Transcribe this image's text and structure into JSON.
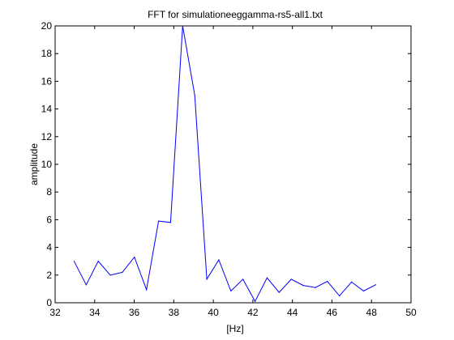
{
  "chart_data": {
    "type": "line",
    "title": "FFT for simulationeeggamma-rs5-all1.txt",
    "xlabel": "[Hz]",
    "ylabel": "amplitude",
    "xlim": [
      32,
      50
    ],
    "ylim": [
      0,
      20
    ],
    "xticks": [
      32,
      34,
      36,
      38,
      40,
      42,
      44,
      46,
      48,
      50
    ],
    "yticks": [
      0,
      2,
      4,
      6,
      8,
      10,
      12,
      14,
      16,
      18,
      20
    ],
    "grid": false,
    "line_color": "#0000ff",
    "series": [
      {
        "x": [
          32.96,
          33.57,
          34.18,
          34.79,
          35.4,
          36.01,
          36.62,
          37.23,
          37.84,
          38.45,
          39.06,
          39.67,
          40.28,
          40.89,
          41.5,
          42.11,
          42.72,
          43.33,
          43.94,
          44.55,
          45.16,
          45.77,
          46.38,
          46.99,
          47.6,
          48.21
        ],
        "values": [
          3.0,
          1.3,
          3.0,
          2.0,
          2.2,
          3.3,
          0.95,
          5.9,
          5.8,
          20.0,
          15.0,
          1.7,
          3.1,
          0.85,
          1.7,
          0.1,
          1.8,
          0.75,
          1.7,
          1.25,
          1.1,
          1.55,
          0.5,
          1.5,
          0.85,
          1.3
        ]
      }
    ]
  }
}
